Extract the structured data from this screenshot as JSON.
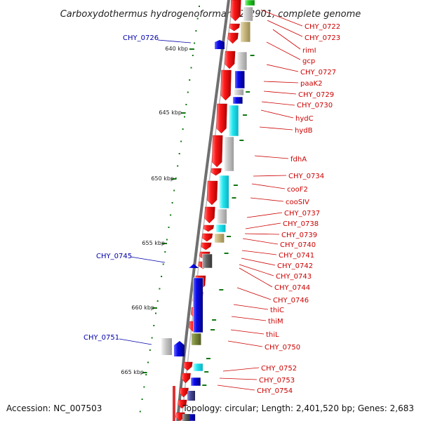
{
  "title": "Carboxydothermus hydrogenoformans Z-2901, complete genome",
  "footer": {
    "accession": "Accession: NC_007503",
    "topology": "Topology: circular; Length: 2,401,520 bp; Genes: 2,683"
  },
  "kbp_ticks": [
    "640 kbp",
    "645 kbp",
    "650 kbp",
    "655 kbp",
    "660 kbp",
    "665 kbp"
  ],
  "right_labels": [
    "CHY_0722",
    "CHY_0723",
    "rimI",
    "gcp",
    "CHY_0727",
    "paaK2",
    "CHY_0729",
    "CHY_0730",
    "hydC",
    "hydB",
    "fdhA",
    "CHY_0734",
    "cooF2",
    "cooSIV",
    "CHY_0737",
    "CHY_0738",
    "CHY_0739",
    "CHY_0740",
    "CHY_0741",
    "CHY_0742",
    "CHY_0743",
    "CHY_0744",
    "CHY_0746",
    "thiC",
    "thiM",
    "thiL",
    "CHY_0750",
    "CHY_0752",
    "CHY_0753",
    "CHY_0754"
  ],
  "left_labels": [
    "CHY_0726",
    "CHY_0745",
    "CHY_0751"
  ],
  "colors": {
    "forward_gene": "#ee1111",
    "reverse_gene": "#0011ee",
    "backbone": "#777777",
    "tick": "#117711",
    "left_label": "#0000aa",
    "right_label": "#cc0000"
  }
}
